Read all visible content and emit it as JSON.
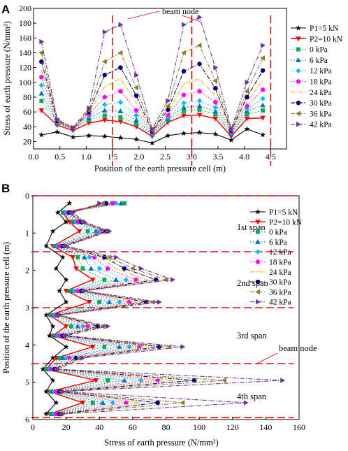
{
  "figure": {
    "legend_entries": [
      "P1=5 kN",
      "P2=10 kN",
      "0 kPa",
      "6 kPa",
      "12 kPa",
      "18 kPa",
      "24 kPa",
      "30 kPa",
      "36 kPa",
      "42 kPa"
    ],
    "series_colors": [
      "#000000",
      "#ff0000",
      "#00b050",
      "#0070c0",
      "#00c0ff",
      "#ff00ff",
      "#ffb000",
      "#000080",
      "#8b7d28",
      "#7030a0"
    ],
    "series_styles": [
      {
        "marker": "star",
        "dash": "none",
        "width": 1.1
      },
      {
        "marker": "triangle-down",
        "dash": "none",
        "width": 1.5
      },
      {
        "marker": "square",
        "dash": "1.5,2.5",
        "width": 1.1
      },
      {
        "marker": "triangle-up",
        "dash": "1.5,2.5",
        "width": 1.1
      },
      {
        "marker": "diamond",
        "dash": "1.5,2.5",
        "width": 1.1
      },
      {
        "marker": "pentagon",
        "dash": "1.5,2.5",
        "width": 1.1
      },
      {
        "marker": "none",
        "dash": "6,2,1.5,2",
        "width": 1.1
      },
      {
        "marker": "circle",
        "dash": "6,2,1.5,2",
        "width": 1.1
      },
      {
        "marker": "triangle-left",
        "dash": "6,2,1.5,2",
        "width": 1.1
      },
      {
        "marker": "triangle-right",
        "dash": "6,2,1.5,2",
        "width": 1.1
      }
    ]
  },
  "chart_data": [
    {
      "panel": "A",
      "type": "line",
      "xlabel": "Position of the earth pressure cell (m)",
      "ylabel": "Stress of earth pressure (N/mm²)",
      "xlim": [
        0,
        4.8
      ],
      "ylim": [
        10,
        200
      ],
      "xticks": [
        "0.0",
        "0.5",
        "1.0",
        "1.5",
        "2.0",
        "2.5",
        "3.0",
        "3.5",
        "4.0",
        "4.5"
      ],
      "yticks": [
        "20",
        "40",
        "60",
        "80",
        "100",
        "120",
        "140",
        "160",
        "180",
        "200"
      ],
      "annotations": [
        "beam node"
      ],
      "beam_node_x": [
        1.5,
        3.0,
        4.5
      ],
      "legend_position": "right",
      "x": [
        0.15,
        0.45,
        0.75,
        1.05,
        1.35,
        1.65,
        1.95,
        2.25,
        2.55,
        2.85,
        3.15,
        3.45,
        3.75,
        4.05,
        4.35
      ],
      "series": [
        {
          "name": "P1=5 kN",
          "values": [
            29,
            33,
            26,
            28,
            27,
            25,
            23,
            18,
            28,
            31,
            32,
            30,
            22,
            37,
            29
          ]
        },
        {
          "name": "P2=10 kN",
          "values": [
            62,
            42,
            35,
            45,
            49,
            47,
            40,
            27,
            46,
            55,
            56,
            51,
            27,
            51,
            52
          ]
        },
        {
          "name": "0 kPa",
          "values": [
            75,
            44,
            37,
            49,
            55,
            53,
            44,
            29,
            49,
            61,
            63,
            57,
            30,
            57,
            62
          ]
        },
        {
          "name": "6 kPa",
          "values": [
            85,
            45,
            37,
            52,
            62,
            61,
            49,
            30,
            51,
            66,
            68,
            61,
            31,
            61,
            69
          ]
        },
        {
          "name": "12 kPa",
          "values": [
            96,
            46,
            37,
            55,
            70,
            73,
            55,
            31,
            53,
            72,
            75,
            66,
            32,
            64,
            78
          ]
        },
        {
          "name": "18 kPa",
          "values": [
            107,
            47,
            37,
            57,
            80,
            88,
            62,
            32,
            56,
            83,
            88,
            73,
            33,
            68,
            90
          ]
        },
        {
          "name": "24 kPa",
          "values": [
            117,
            47,
            37,
            58,
            94,
            105,
            72,
            33,
            59,
            98,
            105,
            82,
            34,
            73,
            103
          ]
        },
        {
          "name": "30 kPa",
          "values": [
            128,
            48,
            38,
            60,
            110,
            120,
            82,
            34,
            63,
            115,
            125,
            92,
            35,
            80,
            116
          ]
        },
        {
          "name": "36 kPa",
          "values": [
            140,
            49,
            38,
            62,
            128,
            140,
            93,
            35,
            68,
            140,
            150,
            102,
            36,
            88,
            133
          ]
        },
        {
          "name": "42 kPa",
          "values": [
            155,
            50,
            39,
            65,
            168,
            178,
            110,
            37,
            75,
            178,
            188,
            120,
            37,
            100,
            150
          ]
        }
      ]
    },
    {
      "panel": "B",
      "type": "line",
      "xlabel": "Stress of earth pressure (N/mm²)",
      "ylabel": "Position of the earth pressure cell (m)",
      "xlim": [
        0,
        160
      ],
      "ylim": [
        6,
        0
      ],
      "xticks": [
        "0",
        "20",
        "40",
        "60",
        "80",
        "100",
        "120",
        "140",
        "160"
      ],
      "yticks": [
        "0",
        "1",
        "2",
        "3",
        "4",
        "5",
        "6"
      ],
      "annotations": [
        "1st span",
        "2nd span",
        "3rd span",
        "beam node",
        "4th span"
      ],
      "beam_node_y": [
        0,
        1.5,
        3.0,
        4.5,
        5.95
      ],
      "legend_position": "top-right",
      "y": [
        0.2,
        0.45,
        0.7,
        0.95,
        1.35,
        1.65,
        1.95,
        2.25,
        2.55,
        2.85,
        3.2,
        3.5,
        3.75,
        4.05,
        4.35,
        4.65,
        4.95,
        5.25,
        5.55,
        5.85
      ],
      "series": [
        {
          "name": "P1=5 kN",
          "values": [
            22,
            15,
            20,
            12,
            8,
            18,
            14,
            20,
            16,
            20,
            8,
            12,
            10,
            20,
            12,
            6,
            12,
            8,
            14,
            8
          ]
        },
        {
          "name": "P2=10 kN",
          "values": [
            48,
            18,
            22,
            28,
            12,
            24,
            26,
            36,
            20,
            34,
            10,
            20,
            12,
            36,
            14,
            8,
            38,
            10,
            30,
            10
          ]
        },
        {
          "name": "0 kPa",
          "values": [
            55,
            18,
            24,
            33,
            13,
            27,
            30,
            43,
            22,
            40,
            11,
            23,
            13,
            43,
            16,
            8,
            45,
            11,
            36,
            11
          ]
        },
        {
          "name": "6 kPa",
          "values": [
            53,
            19,
            25,
            38,
            14,
            31,
            35,
            50,
            24,
            46,
            12,
            27,
            14,
            52,
            18,
            9,
            55,
            12,
            42,
            12
          ]
        },
        {
          "name": "12 kPa",
          "values": [
            50,
            20,
            26,
            40,
            15,
            34,
            40,
            56,
            25,
            52,
            13,
            30,
            15,
            58,
            20,
            10,
            65,
            13,
            48,
            13
          ]
        },
        {
          "name": "18 kPa",
          "values": [
            48,
            21,
            27,
            42,
            16,
            37,
            45,
            62,
            27,
            58,
            14,
            33,
            16,
            64,
            22,
            11,
            75,
            14,
            56,
            14
          ]
        },
        {
          "name": "24 kPa",
          "values": [
            46,
            22,
            28,
            43,
            17,
            40,
            50,
            68,
            28,
            63,
            14,
            36,
            17,
            70,
            24,
            12,
            85,
            15,
            64,
            15
          ]
        },
        {
          "name": "30 kPa",
          "values": [
            44,
            22,
            29,
            44,
            18,
            43,
            55,
            74,
            29,
            68,
            15,
            39,
            18,
            76,
            26,
            13,
            97,
            16,
            75,
            16
          ]
        },
        {
          "name": "36 kPa",
          "values": [
            42,
            23,
            30,
            45,
            19,
            46,
            60,
            80,
            30,
            72,
            15,
            42,
            19,
            82,
            28,
            14,
            115,
            17,
            90,
            17
          ]
        },
        {
          "name": "42 kPa",
          "values": [
            40,
            24,
            31,
            46,
            20,
            50,
            65,
            84,
            31,
            76,
            16,
            45,
            20,
            90,
            30,
            15,
            150,
            18,
            128,
            18
          ]
        }
      ]
    }
  ]
}
